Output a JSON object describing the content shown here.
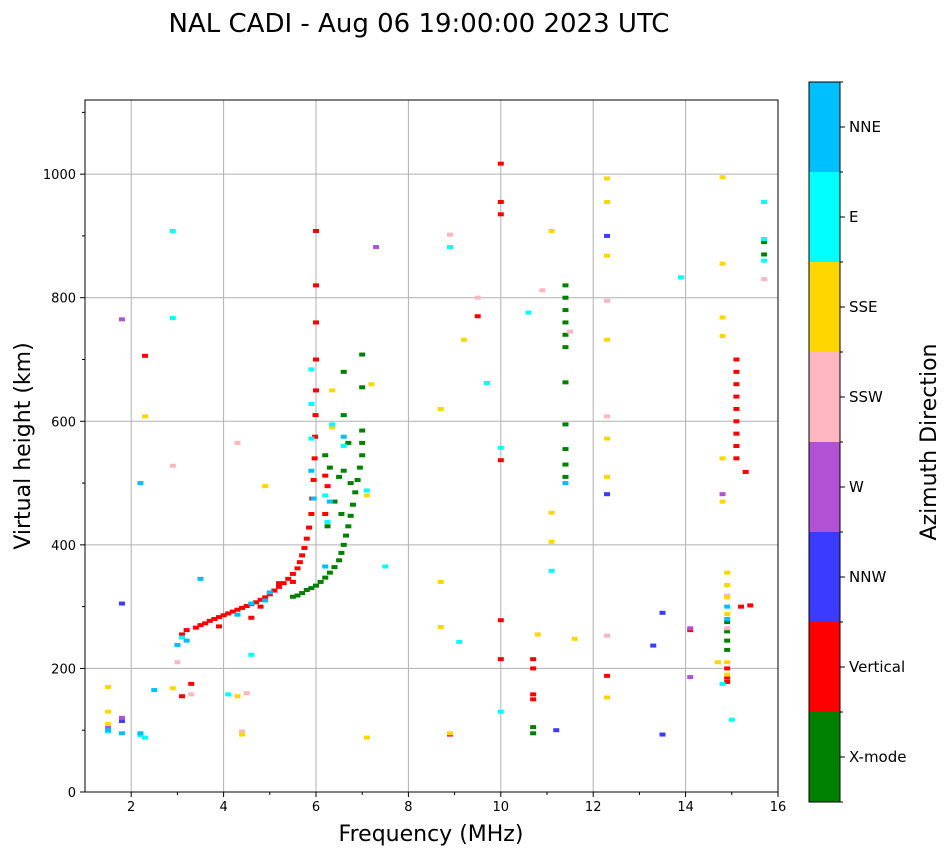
{
  "chart_data": {
    "type": "scatter",
    "title": "NAL CADI - Aug 06 19:00:00 2023 UTC",
    "xlabel": "Frequency (MHz)",
    "ylabel": "Virtual height (km)",
    "xlim": [
      1,
      16
    ],
    "ylim": [
      0,
      1120
    ],
    "xticks": [
      2,
      4,
      6,
      8,
      10,
      12,
      14,
      16
    ],
    "yticks": [
      0,
      200,
      400,
      600,
      800,
      1000
    ],
    "grid": true,
    "colorbar": {
      "label": "Azimuth Direction",
      "categories": [
        {
          "name": "X-mode",
          "color": "#008000"
        },
        {
          "name": "Vertical",
          "color": "#ff0000"
        },
        {
          "name": "NNW",
          "color": "#3b3bff"
        },
        {
          "name": "W",
          "color": "#b152d4"
        },
        {
          "name": "SSW",
          "color": "#ffb6c1"
        },
        {
          "name": "SSE",
          "color": "#ffd700"
        },
        {
          "name": "E",
          "color": "#00ffff"
        },
        {
          "name": "NNE",
          "color": "#00bfff"
        }
      ]
    },
    "series": [
      {
        "name": "Vertical",
        "color": "#ff0000",
        "points": [
          [
            3.1,
            255
          ],
          [
            3.2,
            262
          ],
          [
            3.4,
            266
          ],
          [
            3.5,
            270
          ],
          [
            3.6,
            273
          ],
          [
            3.7,
            277
          ],
          [
            3.8,
            280
          ],
          [
            3.9,
            283
          ],
          [
            4.0,
            286
          ],
          [
            4.1,
            289
          ],
          [
            4.2,
            292
          ],
          [
            4.3,
            295
          ],
          [
            4.4,
            298
          ],
          [
            4.5,
            301
          ],
          [
            4.6,
            304
          ],
          [
            4.7,
            307
          ],
          [
            4.8,
            311
          ],
          [
            4.9,
            315
          ],
          [
            5.0,
            320
          ],
          [
            5.1,
            326
          ],
          [
            5.2,
            332
          ],
          [
            5.3,
            338
          ],
          [
            5.4,
            345
          ],
          [
            5.5,
            353
          ],
          [
            5.6,
            362
          ],
          [
            5.65,
            372
          ],
          [
            5.7,
            383
          ],
          [
            5.75,
            395
          ],
          [
            5.8,
            410
          ],
          [
            5.85,
            428
          ],
          [
            5.9,
            450
          ],
          [
            5.92,
            475
          ],
          [
            5.95,
            505
          ],
          [
            5.97,
            540
          ],
          [
            5.98,
            575
          ],
          [
            5.99,
            610
          ],
          [
            6.0,
            650
          ],
          [
            6.0,
            700
          ],
          [
            6.0,
            760
          ],
          [
            6.0,
            820
          ],
          [
            6.0,
            908
          ],
          [
            4.8,
            300
          ],
          [
            5.2,
            338
          ],
          [
            5.5,
            340
          ],
          [
            4.6,
            282
          ],
          [
            3.9,
            268
          ],
          [
            6.2,
            450
          ],
          [
            6.25,
            495
          ],
          [
            6.2,
            512
          ],
          [
            2.3,
            706
          ],
          [
            3.1,
            155
          ],
          [
            3.3,
            175
          ],
          [
            10.0,
            1017
          ],
          [
            10.0,
            955
          ],
          [
            10.0,
            935
          ],
          [
            10.0,
            537
          ],
          [
            10.0,
            278
          ],
          [
            10.0,
            215
          ],
          [
            9.5,
            770
          ],
          [
            10.7,
            215
          ],
          [
            10.7,
            200
          ],
          [
            10.7,
            158
          ],
          [
            10.7,
            150
          ],
          [
            12.3,
            188
          ],
          [
            14.1,
            262
          ],
          [
            15.2,
            300
          ],
          [
            15.1,
            540
          ],
          [
            15.1,
            560
          ],
          [
            15.1,
            580
          ],
          [
            15.1,
            600
          ],
          [
            15.1,
            620
          ],
          [
            15.1,
            640
          ],
          [
            15.1,
            660
          ],
          [
            15.1,
            680
          ],
          [
            15.1,
            700
          ],
          [
            15.3,
            518
          ],
          [
            14.9,
            200
          ],
          [
            14.9,
            185
          ],
          [
            14.9,
            178
          ],
          [
            8.9,
            93
          ],
          [
            15.4,
            302
          ]
        ]
      },
      {
        "name": "X-mode",
        "color": "#008000",
        "points": [
          [
            5.5,
            316
          ],
          [
            5.6,
            318
          ],
          [
            5.7,
            322
          ],
          [
            5.8,
            327
          ],
          [
            5.9,
            330
          ],
          [
            6.0,
            334
          ],
          [
            6.1,
            340
          ],
          [
            6.2,
            347
          ],
          [
            6.3,
            355
          ],
          [
            6.4,
            364
          ],
          [
            6.5,
            375
          ],
          [
            6.55,
            387
          ],
          [
            6.6,
            400
          ],
          [
            6.65,
            415
          ],
          [
            6.7,
            430
          ],
          [
            6.75,
            447
          ],
          [
            6.8,
            465
          ],
          [
            6.85,
            485
          ],
          [
            6.9,
            505
          ],
          [
            6.95,
            525
          ],
          [
            7.0,
            545
          ],
          [
            7.0,
            565
          ],
          [
            7.0,
            585
          ],
          [
            6.6,
            520
          ],
          [
            6.5,
            510
          ],
          [
            6.7,
            565
          ],
          [
            6.6,
            610
          ],
          [
            6.6,
            680
          ],
          [
            7.0,
            655
          ],
          [
            7.0,
            708
          ],
          [
            6.25,
            430
          ],
          [
            6.4,
            470
          ],
          [
            6.3,
            525
          ],
          [
            6.2,
            545
          ],
          [
            6.75,
            500
          ],
          [
            6.55,
            450
          ],
          [
            11.4,
            820
          ],
          [
            11.4,
            800
          ],
          [
            11.4,
            780
          ],
          [
            11.4,
            760
          ],
          [
            11.4,
            740
          ],
          [
            11.4,
            720
          ],
          [
            11.4,
            663
          ],
          [
            11.4,
            595
          ],
          [
            11.4,
            555
          ],
          [
            11.4,
            530
          ],
          [
            11.4,
            510
          ],
          [
            10.7,
            105
          ],
          [
            10.7,
            95
          ],
          [
            14.9,
            275
          ],
          [
            14.9,
            260
          ],
          [
            14.9,
            245
          ],
          [
            14.9,
            230
          ],
          [
            15.7,
            890
          ],
          [
            15.7,
            870
          ]
        ]
      },
      {
        "name": "NNW",
        "color": "#3b3bff",
        "points": [
          [
            12.3,
            900
          ],
          [
            12.3,
            482
          ],
          [
            13.5,
            290
          ],
          [
            13.3,
            237
          ],
          [
            13.5,
            93
          ],
          [
            1.8,
            305
          ],
          [
            1.8,
            115
          ],
          [
            11.2,
            100
          ]
        ]
      },
      {
        "name": "W",
        "color": "#b152d4",
        "points": [
          [
            14.8,
            482
          ],
          [
            14.1,
            265
          ],
          [
            14.1,
            186
          ],
          [
            1.8,
            120
          ],
          [
            1.5,
            105
          ],
          [
            1.8,
            765
          ],
          [
            7.3,
            882
          ]
        ]
      },
      {
        "name": "SSW",
        "color": "#ffb6c1",
        "points": [
          [
            8.9,
            902
          ],
          [
            9.5,
            800
          ],
          [
            10.9,
            812
          ],
          [
            12.3,
            795
          ],
          [
            12.3,
            608
          ],
          [
            12.3,
            253
          ],
          [
            14.9,
            318
          ],
          [
            14.9,
            265
          ],
          [
            2.9,
            528
          ],
          [
            4.3,
            565
          ],
          [
            4.4,
            98
          ],
          [
            4.5,
            160
          ],
          [
            3.0,
            210
          ],
          [
            3.3,
            158
          ],
          [
            11.5,
            745
          ],
          [
            15.7,
            830
          ]
        ]
      },
      {
        "name": "SSE",
        "color": "#ffd700",
        "points": [
          [
            12.3,
            993
          ],
          [
            12.3,
            955
          ],
          [
            11.1,
            908
          ],
          [
            12.3,
            868
          ],
          [
            12.3,
            732
          ],
          [
            14.8,
            995
          ],
          [
            14.8,
            855
          ],
          [
            14.8,
            768
          ],
          [
            14.8,
            738
          ],
          [
            14.8,
            540
          ],
          [
            14.8,
            470
          ],
          [
            12.3,
            572
          ],
          [
            12.3,
            510
          ],
          [
            12.3,
            153
          ],
          [
            11.6,
            248
          ],
          [
            10.8,
            255
          ],
          [
            11.1,
            452
          ],
          [
            11.1,
            405
          ],
          [
            9.2,
            732
          ],
          [
            8.7,
            620
          ],
          [
            8.7,
            340
          ],
          [
            8.7,
            267
          ],
          [
            8.9,
            95
          ],
          [
            6.35,
            650
          ],
          [
            6.35,
            590
          ],
          [
            7.2,
            660
          ],
          [
            7.1,
            480
          ],
          [
            7.1,
            88
          ],
          [
            2.3,
            608
          ],
          [
            2.9,
            168
          ],
          [
            4.3,
            155
          ],
          [
            4.4,
            93
          ],
          [
            1.5,
            170
          ],
          [
            1.5,
            130
          ],
          [
            1.5,
            110
          ],
          [
            14.9,
            355
          ],
          [
            14.9,
            335
          ],
          [
            14.9,
            315
          ],
          [
            14.9,
            288
          ],
          [
            14.9,
            210
          ],
          [
            14.9,
            190
          ],
          [
            14.7,
            210
          ],
          [
            4.9,
            495
          ]
        ]
      },
      {
        "name": "E",
        "color": "#00ffff",
        "points": [
          [
            2.9,
            908
          ],
          [
            2.9,
            767
          ],
          [
            8.9,
            882
          ],
          [
            10.6,
            776
          ],
          [
            9.7,
            662
          ],
          [
            10.0,
            557
          ],
          [
            11.1,
            358
          ],
          [
            9.1,
            243
          ],
          [
            10.0,
            130
          ],
          [
            13.9,
            833
          ],
          [
            15.0,
            117
          ],
          [
            14.8,
            175
          ],
          [
            15.7,
            955
          ],
          [
            15.7,
            895
          ],
          [
            15.7,
            860
          ],
          [
            6.35,
            595
          ],
          [
            6.6,
            560
          ],
          [
            6.2,
            480
          ],
          [
            6.25,
            437
          ],
          [
            7.1,
            488
          ],
          [
            5.9,
            572
          ],
          [
            5.9,
            628
          ],
          [
            5.9,
            684
          ],
          [
            3.1,
            250
          ],
          [
            4.6,
            222
          ],
          [
            2.2,
            92
          ],
          [
            2.3,
            88
          ],
          [
            1.5,
            98
          ],
          [
            4.1,
            158
          ],
          [
            7.5,
            365
          ]
        ]
      },
      {
        "name": "NNE",
        "color": "#00bfff",
        "points": [
          [
            2.2,
            500
          ],
          [
            3.5,
            345
          ],
          [
            3.0,
            238
          ],
          [
            3.2,
            245
          ],
          [
            2.5,
            165
          ],
          [
            1.8,
            95
          ],
          [
            1.5,
            100
          ],
          [
            2.2,
            95
          ],
          [
            6.6,
            575
          ],
          [
            6.3,
            470
          ],
          [
            6.2,
            365
          ],
          [
            5.9,
            520
          ],
          [
            5.95,
            475
          ],
          [
            11.4,
            500
          ],
          [
            14.9,
            300
          ],
          [
            14.9,
            280
          ],
          [
            4.9,
            310
          ],
          [
            5.0,
            323
          ],
          [
            4.6,
            305
          ],
          [
            4.3,
            287
          ]
        ]
      }
    ]
  }
}
